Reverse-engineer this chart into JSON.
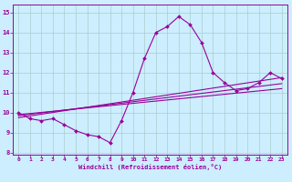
{
  "title": "",
  "xlabel": "Windchill (Refroidissement éolien,°C)",
  "ylabel": "",
  "bg_color": "#cceeff",
  "line_color": "#990099",
  "grid_color": "#aacccc",
  "xlim": [
    -0.5,
    23.5
  ],
  "ylim": [
    7.9,
    15.4
  ],
  "xticks": [
    0,
    1,
    2,
    3,
    4,
    5,
    6,
    7,
    8,
    9,
    10,
    11,
    12,
    13,
    14,
    15,
    16,
    17,
    18,
    19,
    20,
    21,
    22,
    23
  ],
  "yticks": [
    8,
    9,
    10,
    11,
    12,
    13,
    14,
    15
  ],
  "line1_x": [
    0,
    1,
    2,
    3,
    4,
    5,
    6,
    7,
    8,
    9,
    10,
    11,
    12,
    13,
    14,
    15,
    16,
    17,
    18,
    19,
    20,
    21,
    22,
    23
  ],
  "line1_y": [
    10.0,
    9.7,
    9.6,
    9.7,
    9.4,
    9.1,
    8.9,
    8.8,
    8.5,
    9.6,
    11.0,
    12.7,
    14.0,
    14.3,
    14.8,
    14.4,
    13.5,
    12.0,
    11.5,
    11.1,
    11.2,
    11.5,
    12.0,
    11.7
  ],
  "line2_x": [
    0,
    23
  ],
  "line2_y": [
    9.9,
    11.2
  ],
  "line3_x": [
    0,
    23
  ],
  "line3_y": [
    9.85,
    11.45
  ],
  "line4_x": [
    0,
    23
  ],
  "line4_y": [
    9.75,
    11.75
  ]
}
